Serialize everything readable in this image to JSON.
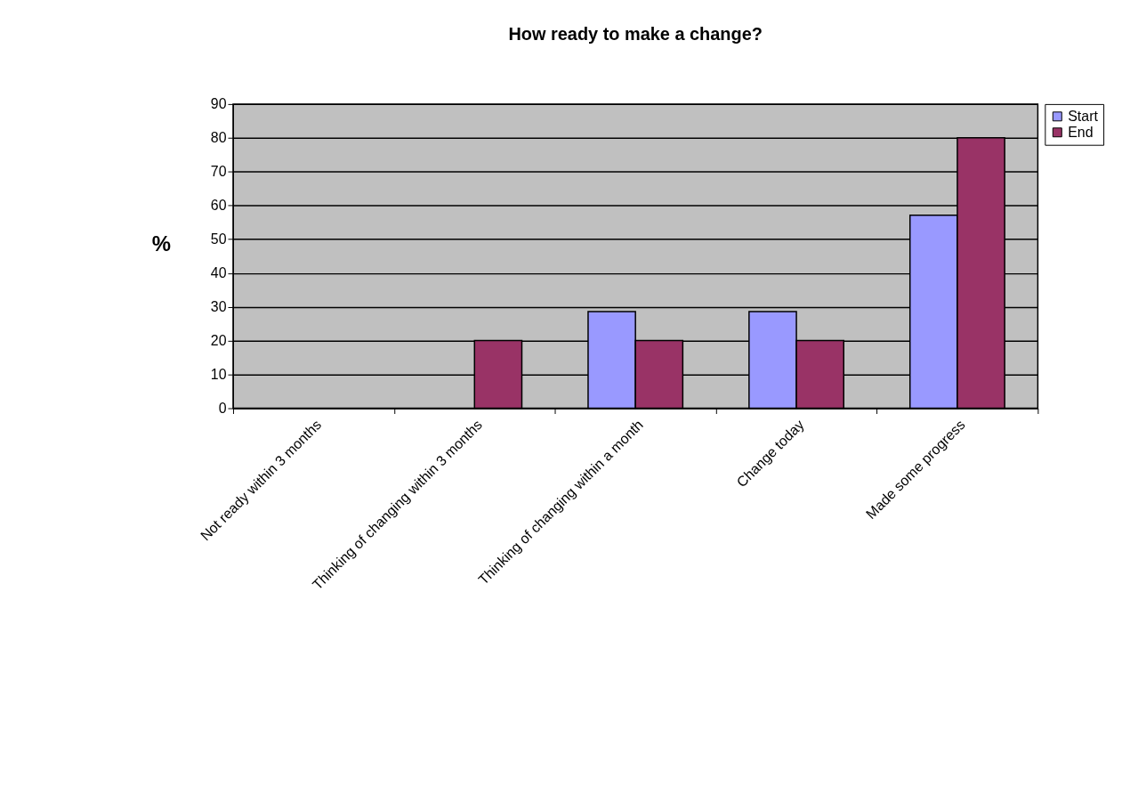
{
  "chart_data": {
    "type": "bar",
    "title": "How ready to make a change?",
    "ylabel": "%",
    "categories": [
      "Not ready within 3 months",
      "Thinking of changing within 3 months",
      "Thinking of changing within a month",
      "Change today",
      "Made some progress"
    ],
    "series": [
      {
        "name": "Start",
        "color": "#9999ff",
        "values": [
          null,
          null,
          28.6,
          28.6,
          57.1
        ]
      },
      {
        "name": "End",
        "color": "#993366",
        "values": [
          null,
          20,
          20,
          20,
          80
        ]
      }
    ],
    "ylim": [
      0,
      90
    ],
    "yticks": [
      0,
      10,
      20,
      30,
      40,
      50,
      60,
      70,
      80,
      90
    ],
    "grid": "y",
    "legend": "right"
  }
}
